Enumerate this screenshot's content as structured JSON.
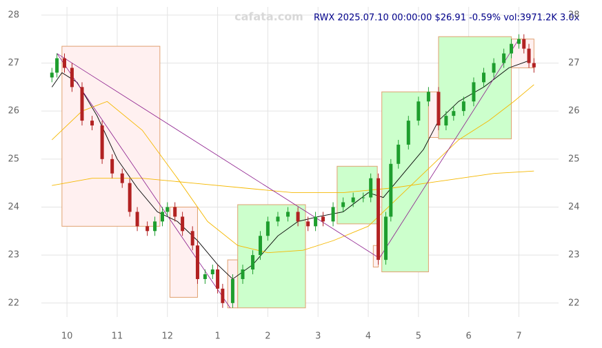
{
  "chart_data": {
    "type": "candlestick",
    "title": "RWX 2025.07.10 00:00:00 $26.91 -0.59% vol:3971.2K 3.0x",
    "watermark": "cafata.com",
    "x": [
      9.7,
      9.8,
      9.95,
      10.1,
      10.3,
      10.5,
      10.7,
      10.9,
      11.1,
      11.25,
      11.4,
      11.6,
      11.75,
      11.9,
      12.0,
      12.15,
      12.3,
      12.5,
      12.6,
      12.75,
      12.9,
      13.0,
      13.1,
      13.3,
      13.5,
      13.7,
      13.85,
      14.0,
      14.2,
      14.4,
      14.6,
      14.8,
      14.95,
      15.1,
      15.3,
      15.5,
      15.7,
      15.9,
      16.05,
      16.2,
      16.35,
      16.45,
      16.6,
      16.8,
      17.0,
      17.2,
      17.4,
      17.55,
      17.7,
      17.9,
      18.1,
      18.3,
      18.5,
      18.7,
      18.85,
      19.0,
      19.1,
      19.2,
      19.3
    ],
    "open": [
      26.7,
      26.8,
      27.1,
      26.9,
      26.5,
      25.8,
      25.7,
      25.0,
      24.7,
      24.5,
      23.9,
      23.6,
      23.5,
      23.7,
      23.9,
      24.0,
      23.8,
      23.5,
      23.2,
      22.5,
      22.6,
      22.7,
      22.3,
      22.0,
      22.5,
      22.7,
      23.0,
      23.4,
      23.7,
      23.8,
      23.9,
      23.7,
      23.6,
      23.8,
      23.7,
      24.0,
      24.1,
      24.2,
      24.2,
      24.6,
      22.9,
      23.8,
      24.9,
      25.3,
      25.8,
      26.2,
      26.4,
      25.7,
      25.9,
      26.0,
      26.2,
      26.6,
      26.8,
      27.0,
      27.2,
      27.4,
      27.5,
      27.3,
      27.0
    ],
    "high": [
      26.9,
      27.2,
      27.2,
      27.0,
      26.6,
      25.9,
      25.8,
      25.1,
      24.8,
      24.6,
      24.0,
      23.7,
      23.8,
      24.0,
      24.1,
      24.1,
      23.9,
      23.6,
      23.3,
      22.7,
      22.8,
      22.8,
      22.4,
      22.6,
      22.8,
      23.1,
      23.5,
      23.8,
      23.9,
      24.0,
      24.0,
      23.8,
      23.9,
      23.9,
      24.1,
      24.2,
      24.3,
      24.3,
      24.7,
      24.7,
      23.9,
      25.0,
      25.4,
      25.9,
      26.3,
      26.5,
      26.5,
      26.0,
      26.1,
      26.3,
      26.7,
      26.9,
      27.1,
      27.3,
      27.5,
      27.6,
      27.6,
      27.4,
      27.1
    ],
    "low": [
      26.6,
      26.7,
      26.8,
      26.4,
      25.7,
      25.6,
      24.9,
      24.6,
      24.4,
      23.8,
      23.5,
      23.4,
      23.4,
      23.6,
      23.8,
      23.7,
      23.4,
      23.1,
      22.4,
      22.4,
      22.5,
      22.2,
      21.9,
      21.9,
      22.4,
      22.6,
      22.9,
      23.3,
      23.6,
      23.7,
      23.6,
      23.5,
      23.5,
      23.6,
      23.6,
      23.9,
      24.0,
      24.1,
      24.1,
      22.8,
      22.8,
      23.7,
      24.8,
      25.2,
      25.7,
      26.1,
      25.6,
      25.6,
      25.8,
      25.9,
      26.1,
      26.5,
      26.7,
      26.9,
      27.1,
      27.3,
      27.2,
      26.9,
      26.8
    ],
    "close": [
      26.8,
      27.1,
      26.9,
      26.5,
      25.8,
      25.7,
      25.0,
      24.7,
      24.5,
      23.9,
      23.6,
      23.5,
      23.7,
      23.9,
      24.0,
      23.8,
      23.5,
      23.2,
      22.5,
      22.6,
      22.7,
      22.3,
      22.0,
      22.5,
      22.7,
      23.0,
      23.4,
      23.7,
      23.8,
      23.9,
      23.7,
      23.6,
      23.8,
      23.7,
      24.0,
      24.1,
      24.2,
      24.2,
      24.6,
      22.9,
      23.8,
      24.9,
      25.3,
      25.8,
      26.2,
      26.4,
      25.7,
      25.9,
      26.0,
      26.2,
      26.6,
      26.8,
      27.0,
      27.2,
      27.4,
      27.5,
      27.3,
      27.0,
      26.91
    ],
    "up_color": "#1e9e2e",
    "down_color": "#b22222",
    "boxes": [
      {
        "x": [
          9.9,
          11.85
        ],
        "y": [
          23.6,
          27.35
        ],
        "color": "#fff0f0"
      },
      {
        "x": [
          12.05,
          12.6
        ],
        "y": [
          22.12,
          24.0
        ],
        "color": "#fff0f0"
      },
      {
        "x": [
          13.2,
          13.4
        ],
        "y": [
          21.9,
          22.9
        ],
        "color": "#fff0f0"
      },
      {
        "x": [
          13.4,
          14.75
        ],
        "y": [
          21.9,
          24.05
        ],
        "color": "#ccffcc"
      },
      {
        "x": [
          15.38,
          16.18
        ],
        "y": [
          23.65,
          24.85
        ],
        "color": "#ccffcc"
      },
      {
        "x": [
          16.1,
          16.2
        ],
        "y": [
          22.75,
          23.2
        ],
        "color": "#fff0f0"
      },
      {
        "x": [
          16.27,
          17.2
        ],
        "y": [
          22.65,
          26.4
        ],
        "color": "#ccffcc"
      },
      {
        "x": [
          17.2,
          17.4
        ],
        "y": [
          25.45,
          26.4
        ],
        "color": "#fff0f0"
      },
      {
        "x": [
          17.4,
          18.85
        ],
        "y": [
          25.42,
          27.55
        ],
        "color": "#ccffcc"
      },
      {
        "x": [
          18.85,
          19.3
        ],
        "y": [
          26.9,
          27.5
        ],
        "color": "#fff0f0"
      }
    ],
    "box_stroke": "#e0a070",
    "lines": [
      {
        "color": "#000000",
        "x": [
          9.7,
          9.9,
          10.2,
          10.6,
          11.0,
          11.4,
          11.8,
          12.2,
          12.6,
          13.0,
          13.3,
          13.7,
          14.2,
          14.6,
          15.0,
          15.5,
          16.0,
          16.3,
          16.7,
          17.1,
          17.4,
          17.8,
          18.3,
          18.8,
          19.2
        ],
        "values": [
          26.5,
          26.8,
          26.6,
          25.9,
          25.0,
          24.4,
          23.9,
          23.7,
          23.3,
          22.8,
          22.5,
          22.8,
          23.4,
          23.7,
          23.8,
          23.9,
          24.3,
          24.2,
          24.7,
          25.2,
          25.8,
          26.2,
          26.5,
          26.9,
          27.05
        ]
      },
      {
        "color": "#f5b800",
        "x": [
          9.7,
          10.3,
          10.8,
          11.5,
          12.2,
          12.8,
          13.4,
          14.0,
          14.7,
          15.3,
          16.0,
          16.6,
          17.3,
          17.8,
          18.4,
          18.9,
          19.3
        ],
        "values": [
          25.4,
          26.0,
          26.2,
          25.6,
          24.6,
          23.7,
          23.2,
          23.05,
          23.1,
          23.3,
          23.6,
          24.2,
          24.9,
          25.4,
          25.8,
          26.2,
          26.55
        ]
      },
      {
        "color": "#f5b800",
        "x": [
          9.7,
          10.5,
          11.5,
          12.5,
          13.5,
          14.5,
          15.5,
          16.5,
          17.5,
          18.5,
          19.3
        ],
        "values": [
          24.45,
          24.6,
          24.6,
          24.5,
          24.4,
          24.3,
          24.3,
          24.4,
          24.55,
          24.7,
          24.75
        ]
      }
    ],
    "trendlines": [
      {
        "color": "#8b1a8b",
        "x": [
          9.8,
          16.2
        ],
        "y": [
          27.2,
          22.95
        ]
      },
      {
        "color": "#8b1a8b",
        "x": [
          9.8,
          13.25
        ],
        "y": [
          27.2,
          21.9
        ]
      },
      {
        "color": "#8b1a8b",
        "x": [
          16.2,
          19.0
        ],
        "y": [
          22.9,
          27.5
        ]
      }
    ],
    "xlim": [
      9.49,
      19.79
    ],
    "xticks": [
      10,
      11,
      12,
      {
        "value": 13,
        "label": "1"
      },
      {
        "value": 14,
        "label": "2"
      },
      {
        "value": 15,
        "label": "3"
      },
      {
        "value": 16,
        "label": "4"
      },
      {
        "value": 17,
        "label": "5"
      },
      {
        "value": 18,
        "label": "6"
      },
      {
        "value": 19,
        "label": "7"
      }
    ],
    "ylim": [
      21.71,
      28.17
    ],
    "yticks": [
      22,
      23,
      24,
      25,
      26,
      27,
      28
    ],
    "grid": true
  }
}
